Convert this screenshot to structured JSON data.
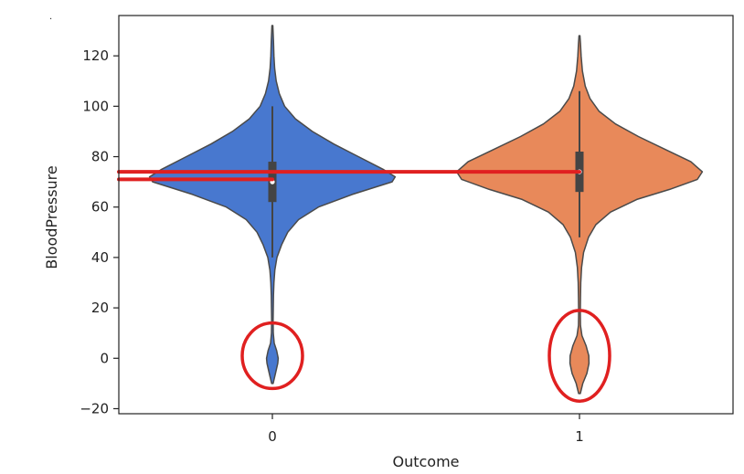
{
  "chart_data": {
    "type": "violin",
    "xlabel": "Outcome",
    "ylabel": "BloodPressure",
    "corner_mark": "·",
    "categories": [
      "0",
      "1"
    ],
    "ylim": [
      -22,
      136
    ],
    "yticks": [
      -20,
      0,
      20,
      40,
      60,
      80,
      100,
      120
    ],
    "grid": false,
    "legend": "none",
    "violins": [
      {
        "category": "0",
        "color": "#4878cf",
        "min": -10,
        "max": 132,
        "whisker_low": 40,
        "whisker_high": 100,
        "q1": 62,
        "median": 70,
        "q3": 78,
        "density": [
          [
            -10,
            0.005
          ],
          [
            -6,
            0.02
          ],
          [
            -2,
            0.035
          ],
          [
            0,
            0.038
          ],
          [
            3,
            0.028
          ],
          [
            6,
            0.012
          ],
          [
            10,
            0.006
          ],
          [
            15,
            0.005
          ],
          [
            20,
            0.006
          ],
          [
            25,
            0.007
          ],
          [
            30,
            0.01
          ],
          [
            35,
            0.016
          ],
          [
            40,
            0.03
          ],
          [
            45,
            0.06
          ],
          [
            50,
            0.1
          ],
          [
            55,
            0.17
          ],
          [
            60,
            0.3
          ],
          [
            65,
            0.52
          ],
          [
            70,
            0.78
          ],
          [
            72,
            0.8
          ],
          [
            75,
            0.72
          ],
          [
            80,
            0.56
          ],
          [
            85,
            0.4
          ],
          [
            90,
            0.26
          ],
          [
            95,
            0.15
          ],
          [
            100,
            0.08
          ],
          [
            105,
            0.045
          ],
          [
            110,
            0.025
          ],
          [
            115,
            0.015
          ],
          [
            120,
            0.01
          ],
          [
            126,
            0.007
          ],
          [
            132,
            0.003
          ]
        ]
      },
      {
        "category": "1",
        "color": "#e8895a",
        "min": -14,
        "max": 128,
        "whisker_low": 48,
        "whisker_high": 106,
        "q1": 66,
        "median": 74,
        "q3": 82,
        "density": [
          [
            -14,
            0.005
          ],
          [
            -10,
            0.02
          ],
          [
            -6,
            0.045
          ],
          [
            -2,
            0.058
          ],
          [
            1,
            0.057
          ],
          [
            5,
            0.04
          ],
          [
            9,
            0.015
          ],
          [
            13,
            0.006
          ],
          [
            18,
            0.005
          ],
          [
            24,
            0.006
          ],
          [
            30,
            0.008
          ],
          [
            36,
            0.013
          ],
          [
            42,
            0.025
          ],
          [
            48,
            0.055
          ],
          [
            53,
            0.1
          ],
          [
            58,
            0.19
          ],
          [
            63,
            0.35
          ],
          [
            67,
            0.55
          ],
          [
            71,
            0.72
          ],
          [
            74,
            0.75
          ],
          [
            78,
            0.68
          ],
          [
            83,
            0.52
          ],
          [
            88,
            0.36
          ],
          [
            93,
            0.22
          ],
          [
            98,
            0.12
          ],
          [
            103,
            0.065
          ],
          [
            108,
            0.035
          ],
          [
            114,
            0.018
          ],
          [
            120,
            0.01
          ],
          [
            125,
            0.006
          ],
          [
            128,
            0.003
          ]
        ]
      }
    ],
    "annotations": {
      "line_color": "#e02020",
      "horizontal_lines": [
        {
          "from_x": "left",
          "to_category": "1",
          "y": 74
        },
        {
          "from_x": "left",
          "to_category": "0",
          "y": 71
        }
      ],
      "circled_regions": [
        {
          "category": "0",
          "y_low": -12,
          "y_high": 14
        },
        {
          "category": "1",
          "y_low": -17,
          "y_high": 19
        }
      ]
    }
  }
}
